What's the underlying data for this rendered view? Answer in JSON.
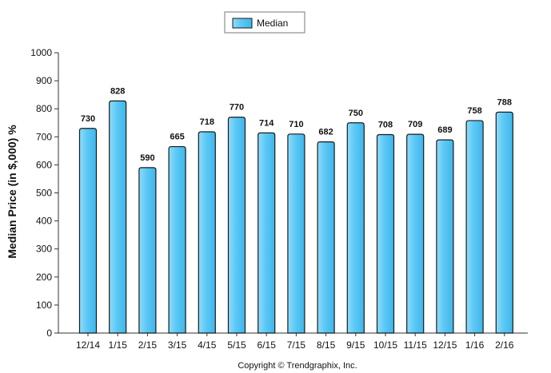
{
  "chart_data": {
    "type": "bar",
    "categories": [
      "12/14",
      "1/15",
      "2/15",
      "3/15",
      "4/15",
      "5/15",
      "6/15",
      "7/15",
      "8/15",
      "9/15",
      "10/15",
      "11/15",
      "12/15",
      "1/16",
      "2/16"
    ],
    "series": [
      {
        "name": "Median",
        "values": [
          730,
          828,
          590,
          665,
          718,
          770,
          714,
          710,
          682,
          750,
          708,
          709,
          689,
          758,
          788
        ]
      }
    ],
    "data_labels": [
      "730",
      "828",
      "590",
      "665",
      "718",
      "770",
      "714",
      "710",
      "682",
      "750",
      "708",
      "709",
      "689",
      "758",
      "788"
    ],
    "yticks": [
      "0",
      "100",
      "200",
      "300",
      "400",
      "500",
      "600",
      "700",
      "800",
      "900",
      "1000"
    ],
    "ylabel": "Median Price (in $,000) %",
    "xlabel": "",
    "ylim": [
      0,
      1000
    ],
    "grid": false,
    "legend": "top-center",
    "bar_color": "#5bc8f5",
    "bar_stroke": "#1a1a1a"
  },
  "footer": {
    "copyright": "Copyright © Trendgraphix, Inc."
  }
}
